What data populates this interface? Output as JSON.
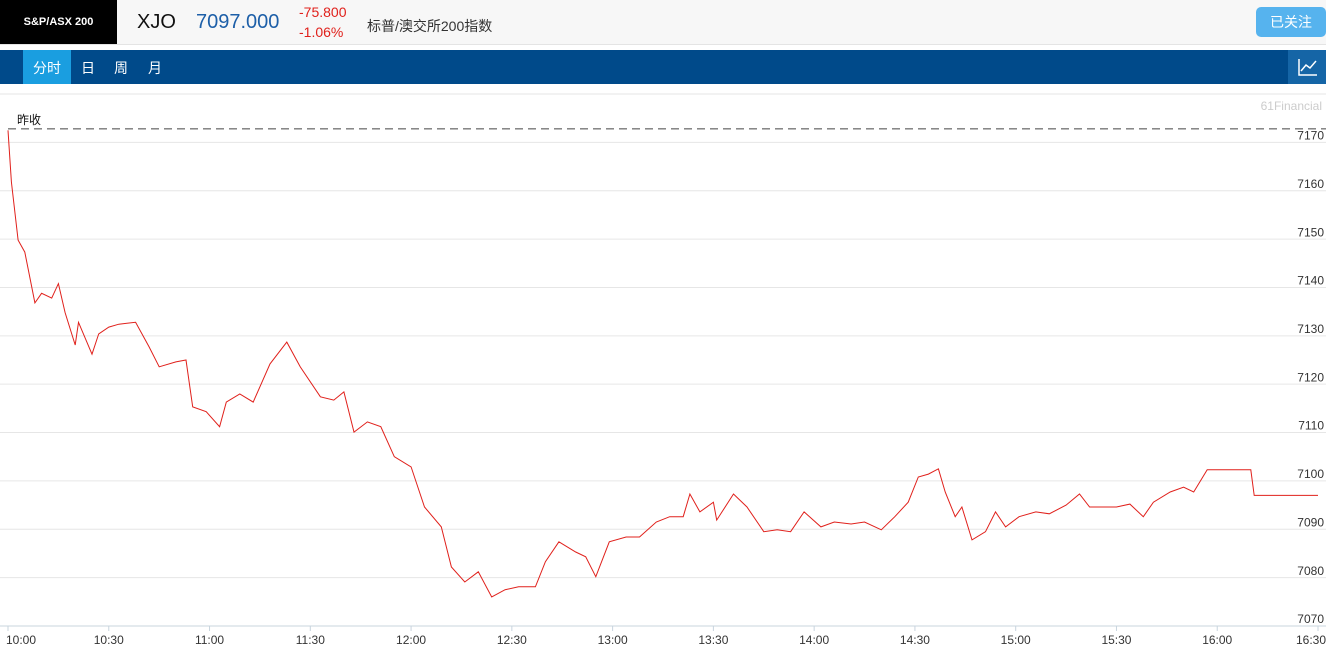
{
  "header": {
    "logo": "S&P/ASX 200",
    "symbol": "XJO",
    "price": "7097.000",
    "change": "-75.800",
    "change_pct": "-1.06%",
    "name": "标普/澳交所200指数",
    "follow_button": "已关注"
  },
  "tabs": [
    "分时",
    "日",
    "周",
    "月"
  ],
  "chart_data": {
    "type": "line",
    "watermark": "61Financial",
    "reference": {
      "label": "昨收",
      "value": 7172.8
    },
    "x": [
      "10:00",
      "10:01",
      "10:03",
      "10:05",
      "10:08",
      "10:10",
      "10:13",
      "10:15",
      "10:17",
      "10:20",
      "10:21",
      "10:25",
      "10:27",
      "10:30",
      "10:33",
      "10:38",
      "10:42",
      "10:45",
      "10:50",
      "10:53",
      "10:55",
      "10:59",
      "11:03",
      "11:05",
      "11:09",
      "11:13",
      "11:18",
      "11:23",
      "11:27",
      "11:33",
      "11:37",
      "11:40",
      "11:43",
      "11:47",
      "11:51",
      "11:55",
      "12:00",
      "12:04",
      "12:09",
      "12:12",
      "12:16",
      "12:20",
      "12:24",
      "12:28",
      "12:32",
      "12:37",
      "12:40",
      "12:44",
      "12:49",
      "12:52",
      "12:55",
      "12:59",
      "13:04",
      "13:08",
      "13:13",
      "13:17",
      "13:21",
      "13:23",
      "13:26",
      "13:30",
      "13:31",
      "13:36",
      "13:40",
      "13:45",
      "13:49",
      "13:53",
      "13:57",
      "14:02",
      "14:06",
      "14:11",
      "14:15",
      "14:20",
      "14:24",
      "14:28",
      "14:31",
      "14:34",
      "14:37",
      "14:39",
      "14:42",
      "14:44",
      "14:47",
      "14:51",
      "14:54",
      "14:57",
      "15:01",
      "15:06",
      "15:10",
      "15:15",
      "15:19",
      "15:22",
      "15:25",
      "15:30",
      "15:34",
      "15:38",
      "15:41",
      "15:46",
      "15:50",
      "15:53",
      "15:57",
      "15:59",
      "16:10",
      "16:11",
      "16:30"
    ],
    "series": [
      {
        "color": "#e0201b",
        "values": [
          7172.5,
          7161.8,
          7149.8,
          7147.3,
          7136.8,
          7138.8,
          7137.8,
          7140.8,
          7134.8,
          7128.1,
          7132.8,
          7126.2,
          7130.4,
          7131.8,
          7132.4,
          7132.8,
          7127.7,
          7123.6,
          7124.6,
          7125.0,
          7115.3,
          7114.3,
          7111.2,
          7116.3,
          7118.0,
          7116.3,
          7124.2,
          7128.7,
          7123.6,
          7117.4,
          7116.7,
          7118.4,
          7110.1,
          7112.2,
          7111.2,
          7105.0,
          7102.9,
          7094.6,
          7090.5,
          7082.2,
          7079.1,
          7081.2,
          7076.0,
          7077.5,
          7078.1,
          7078.1,
          7083.3,
          7087.4,
          7085.3,
          7084.3,
          7080.2,
          7087.4,
          7088.4,
          7088.4,
          7091.5,
          7092.6,
          7092.6,
          7097.3,
          7093.6,
          7095.6,
          7091.9,
          7097.3,
          7094.6,
          7089.5,
          7089.9,
          7089.5,
          7093.6,
          7090.5,
          7091.5,
          7091.1,
          7091.5,
          7089.9,
          7092.6,
          7095.6,
          7100.8,
          7101.4,
          7102.5,
          7097.7,
          7092.6,
          7094.6,
          7087.8,
          7089.5,
          7093.6,
          7090.5,
          7092.6,
          7093.6,
          7093.2,
          7095.0,
          7097.3,
          7094.6,
          7094.6,
          7094.6,
          7095.2,
          7092.6,
          7095.6,
          7097.7,
          7098.7,
          7097.7,
          7102.3,
          7102.3,
          7102.3,
          7097.0,
          7097.0
        ]
      }
    ],
    "xlim": [
      "10:00",
      "16:30"
    ],
    "xticks": [
      "10:00",
      "10:30",
      "11:00",
      "11:30",
      "12:00",
      "12:30",
      "13:00",
      "13:30",
      "14:00",
      "14:30",
      "15:00",
      "15:30",
      "16:00",
      "16:30"
    ],
    "ylim": [
      7070,
      7180
    ],
    "yticks": [
      7070,
      7080,
      7090,
      7100,
      7110,
      7120,
      7130,
      7140,
      7150,
      7160,
      7170
    ],
    "grid": true
  }
}
